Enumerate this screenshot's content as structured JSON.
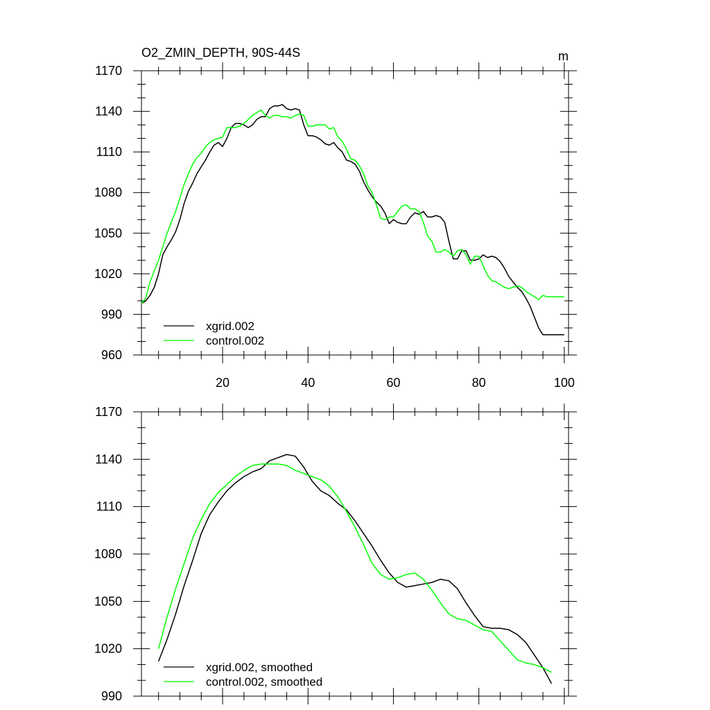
{
  "chart_data": [
    {
      "type": "line",
      "title": "O2_ZMIN_DEPTH, 90S-44S",
      "units": "m",
      "xlim": [
        1,
        101
      ],
      "ylim": [
        960,
        1170
      ],
      "x_ticks": [
        20,
        40,
        60,
        80,
        100
      ],
      "y_ticks": [
        960,
        990,
        1020,
        1050,
        1080,
        1110,
        1140,
        1170
      ],
      "legend": "bottom-left",
      "series": [
        {
          "name": "xgrid.002",
          "color": "#000000",
          "x": [
            1,
            2,
            3,
            4,
            5,
            6,
            7,
            8,
            9,
            10,
            11,
            12,
            13,
            14,
            15,
            16,
            17,
            18,
            19,
            20,
            21,
            22,
            23,
            24,
            25,
            26,
            27,
            28,
            29,
            30,
            31,
            32,
            33,
            34,
            35,
            36,
            37,
            38,
            39,
            40,
            41,
            42,
            43,
            44,
            45,
            46,
            47,
            48,
            49,
            50,
            51,
            52,
            53,
            54,
            55,
            56,
            57,
            58,
            59,
            60,
            61,
            62,
            63,
            64,
            65,
            66,
            67,
            68,
            69,
            70,
            71,
            72,
            73,
            74,
            75,
            76,
            77,
            78,
            79,
            80,
            81,
            82,
            83,
            84,
            85,
            86,
            87,
            88,
            89,
            90,
            91,
            92,
            93,
            94,
            95,
            96,
            97,
            98,
            99,
            100
          ],
          "y": [
            998,
            1000,
            1004,
            1010,
            1020,
            1034,
            1040,
            1045,
            1051,
            1060,
            1072,
            1081,
            1087,
            1094,
            1099,
            1104,
            1110,
            1115,
            1117,
            1114,
            1120,
            1128,
            1131,
            1131,
            1130,
            1128,
            1130,
            1134,
            1136,
            1136,
            1142,
            1144,
            1144,
            1145,
            1142,
            1141,
            1142,
            1141,
            1130,
            1122,
            1122,
            1121,
            1119,
            1116,
            1115,
            1117,
            1113,
            1110,
            1104,
            1103,
            1101,
            1096,
            1088,
            1082,
            1077,
            1073,
            1070,
            1065,
            1057,
            1060,
            1058,
            1057,
            1057,
            1062,
            1065,
            1064,
            1066,
            1062,
            1062,
            1063,
            1062,
            1058,
            1044,
            1031,
            1031,
            1037,
            1037,
            1030,
            1030,
            1031,
            1034,
            1032,
            1033,
            1032,
            1029,
            1024,
            1018,
            1014,
            1010,
            1007,
            1002,
            996,
            988,
            980,
            975,
            975,
            975,
            975,
            975,
            975
          ]
        },
        {
          "name": "control.002",
          "color": "#00ff00",
          "x": [
            1,
            2,
            3,
            4,
            5,
            6,
            7,
            8,
            9,
            10,
            11,
            12,
            13,
            14,
            15,
            16,
            17,
            18,
            19,
            20,
            21,
            22,
            23,
            24,
            25,
            26,
            27,
            28,
            29,
            30,
            31,
            32,
            33,
            34,
            35,
            36,
            37,
            38,
            39,
            40,
            41,
            42,
            43,
            44,
            45,
            46,
            47,
            48,
            49,
            50,
            51,
            52,
            53,
            54,
            55,
            56,
            57,
            58,
            59,
            60,
            61,
            62,
            63,
            64,
            65,
            66,
            67,
            68,
            69,
            70,
            71,
            72,
            73,
            74,
            75,
            76,
            77,
            78,
            79,
            80,
            81,
            82,
            83,
            84,
            85,
            86,
            87,
            88,
            89,
            90,
            91,
            92,
            93,
            94,
            95,
            96,
            97,
            98,
            99,
            100
          ],
          "y": [
            998,
            1002,
            1014,
            1022,
            1030,
            1040,
            1050,
            1058,
            1066,
            1076,
            1086,
            1094,
            1101,
            1106,
            1109,
            1114,
            1117,
            1119,
            1120,
            1121,
            1128,
            1128,
            1128,
            1129,
            1131,
            1134,
            1137,
            1139,
            1141,
            1137,
            1135,
            1137,
            1137,
            1136,
            1136,
            1135,
            1137,
            1138,
            1137,
            1129,
            1129,
            1130,
            1130,
            1130,
            1127,
            1128,
            1121,
            1118,
            1112,
            1105,
            1104,
            1100,
            1094,
            1085,
            1080,
            1071,
            1061,
            1060,
            1062,
            1062,
            1066,
            1070,
            1071,
            1068,
            1068,
            1066,
            1058,
            1048,
            1044,
            1036,
            1036,
            1038,
            1036,
            1033,
            1037,
            1038,
            1034,
            1027,
            1033,
            1033,
            1026,
            1019,
            1015,
            1014,
            1012,
            1010,
            1009,
            1010,
            1011,
            1010,
            1007,
            1005,
            1003,
            1001,
            1004,
            1003,
            1003,
            1003,
            1003,
            1003
          ]
        }
      ]
    },
    {
      "type": "line",
      "title": "",
      "xlim": [
        1,
        101
      ],
      "ylim": [
        990,
        1170
      ],
      "x_ticks": [
        20,
        40,
        60,
        80,
        100
      ],
      "y_ticks": [
        990,
        1020,
        1050,
        1080,
        1110,
        1140,
        1170
      ],
      "legend": "bottom-left",
      "series": [
        {
          "name": "xgrid.002, smoothed",
          "color": "#000000",
          "x": [
            5,
            7,
            9,
            11,
            13,
            15,
            17,
            19,
            21,
            23,
            25,
            27,
            29,
            31,
            33,
            35,
            37,
            39,
            41,
            43,
            45,
            47,
            49,
            51,
            53,
            55,
            57,
            59,
            61,
            63,
            65,
            67,
            69,
            71,
            73,
            75,
            77,
            79,
            81,
            83,
            85,
            87,
            89,
            91,
            93,
            95,
            97
          ],
          "y": [
            1012,
            1026,
            1042,
            1060,
            1076,
            1093,
            1105,
            1113,
            1120,
            1125,
            1129,
            1132,
            1134,
            1139,
            1141,
            1143,
            1142,
            1135,
            1126,
            1120,
            1117,
            1112,
            1108,
            1101,
            1093,
            1085,
            1076,
            1068,
            1062,
            1059,
            1060,
            1061,
            1062,
            1064,
            1063,
            1058,
            1049,
            1041,
            1034,
            1033,
            1033,
            1032,
            1029,
            1024,
            1016,
            1008,
            998
          ]
        },
        {
          "name": "control.002, smoothed",
          "color": "#00ff00",
          "x": [
            5,
            7,
            9,
            11,
            13,
            15,
            17,
            19,
            21,
            23,
            25,
            27,
            29,
            31,
            33,
            35,
            37,
            39,
            41,
            43,
            45,
            47,
            49,
            51,
            53,
            55,
            57,
            59,
            61,
            63,
            65,
            67,
            69,
            71,
            73,
            75,
            77,
            79,
            81,
            83,
            85,
            87,
            89,
            91,
            93,
            95,
            97
          ],
          "y": [
            1020,
            1040,
            1058,
            1074,
            1090,
            1102,
            1112,
            1119,
            1124,
            1129,
            1133,
            1136,
            1137,
            1137,
            1137,
            1136,
            1133,
            1131,
            1129,
            1127,
            1123,
            1116,
            1107,
            1097,
            1086,
            1074,
            1067,
            1064,
            1065,
            1067,
            1068,
            1064,
            1057,
            1049,
            1042,
            1039,
            1038,
            1035,
            1032,
            1031,
            1025,
            1019,
            1013,
            1011,
            1010,
            1008,
            1005
          ]
        }
      ]
    }
  ]
}
